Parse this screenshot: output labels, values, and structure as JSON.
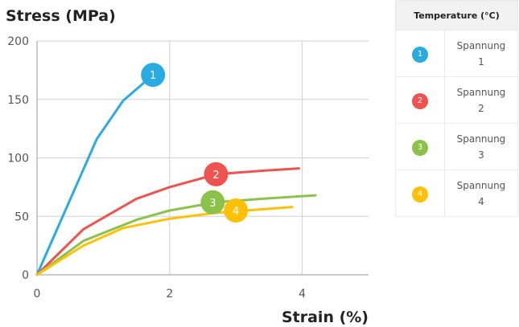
{
  "chart_data": {
    "type": "line",
    "xlabel": "Strain (%)",
    "ylabel": "Stress (MPa)",
    "xlim": [
      0,
      5
    ],
    "ylim": [
      0,
      200
    ],
    "xticks": [
      0,
      2,
      4
    ],
    "yticks": [
      0,
      50,
      100,
      150,
      200
    ],
    "grid": true,
    "series": [
      {
        "name": "1",
        "color": "#29abe2",
        "x": [
          0,
          0.9,
          1.3,
          1.75
        ],
        "y": [
          0,
          116,
          149,
          171
        ]
      },
      {
        "name": "2",
        "color": "#ef5350",
        "x": [
          0,
          0.7,
          1.5,
          2.0,
          2.7,
          3.4,
          3.95
        ],
        "y": [
          0,
          39,
          65,
          75,
          86,
          89,
          91
        ]
      },
      {
        "name": "3",
        "color": "#8bc34a",
        "x": [
          0,
          0.7,
          1.5,
          2.0,
          2.7,
          3.4,
          4.2
        ],
        "y": [
          0,
          29,
          47,
          55,
          62,
          65,
          68
        ]
      },
      {
        "name": "4",
        "color": "#ffc107",
        "x": [
          0,
          0.7,
          1.3,
          2.0,
          2.7,
          3.4,
          3.85
        ],
        "y": [
          0,
          25,
          40,
          48,
          53,
          56,
          58
        ]
      }
    ],
    "markers": [
      {
        "label": "1",
        "x": 1.75,
        "y": 171,
        "color": "#29abe2"
      },
      {
        "label": "2",
        "x": 2.7,
        "y": 86,
        "color": "#ef5350"
      },
      {
        "label": "3",
        "x": 2.65,
        "y": 62,
        "color": "#8bc34a"
      },
      {
        "label": "4",
        "x": 3.0,
        "y": 55,
        "color": "#ffc107"
      }
    ]
  },
  "legend": {
    "title": "Temperature (°C)",
    "rows": [
      {
        "num": "1",
        "color": "#29abe2",
        "line1": "Spannung",
        "line2": "1"
      },
      {
        "num": "2",
        "color": "#ef5350",
        "line1": "Spannung",
        "line2": "2"
      },
      {
        "num": "3",
        "color": "#8bc34a",
        "line1": "Spannung",
        "line2": "3"
      },
      {
        "num": "4",
        "color": "#ffc107",
        "line1": "Spannung",
        "line2": "4"
      }
    ]
  }
}
